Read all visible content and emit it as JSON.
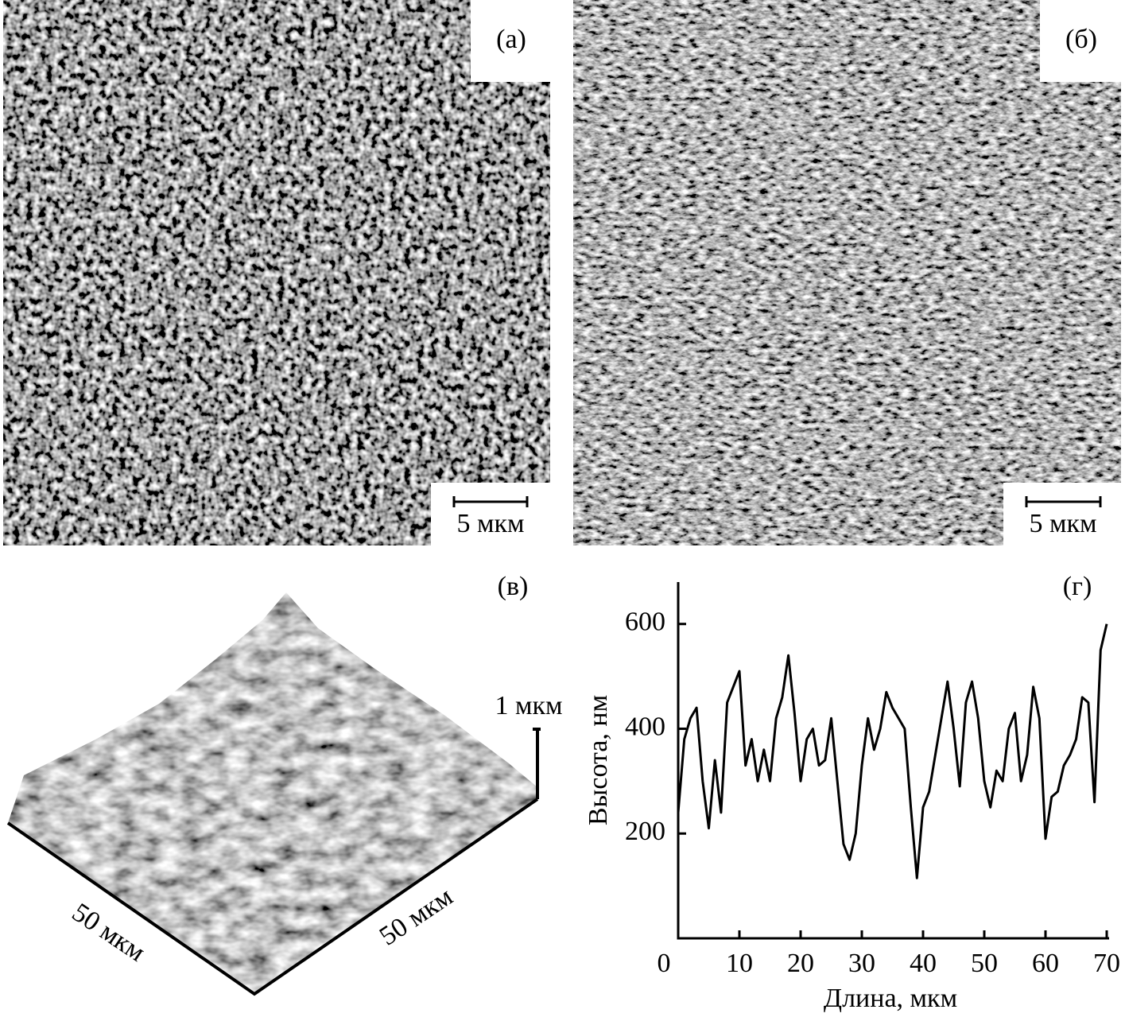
{
  "panels": [
    {
      "label": "(а)",
      "scale_bar": "5 мкм"
    },
    {
      "label": "(б)",
      "scale_bar": "5 мкм"
    },
    {
      "label": "(в)",
      "height_scale": "1 мкм",
      "x_axis": "50 мкм",
      "y_axis": "50 мкм"
    }
  ],
  "chart_data": {
    "type": "line",
    "label": "(г)",
    "xlabel": "Длина, мкм",
    "ylabel": "Высота, нм",
    "color": "#000000",
    "x": [
      0,
      1,
      2,
      3,
      4,
      5,
      6,
      7,
      8,
      9,
      10,
      11,
      12,
      13,
      14,
      15,
      16,
      17,
      18,
      19,
      20,
      21,
      22,
      23,
      24,
      25,
      26,
      27,
      28,
      29,
      30,
      31,
      32,
      33,
      34,
      35,
      36,
      37,
      38,
      39,
      40,
      41,
      42,
      43,
      44,
      45,
      46,
      47,
      48,
      49,
      50,
      51,
      52,
      53,
      54,
      55,
      56,
      57,
      58,
      59,
      60,
      61,
      62,
      63,
      64,
      65,
      66,
      67,
      68,
      69,
      70
    ],
    "values": [
      240,
      380,
      420,
      440,
      300,
      210,
      340,
      240,
      450,
      480,
      510,
      330,
      380,
      300,
      360,
      300,
      420,
      460,
      540,
      430,
      300,
      380,
      400,
      330,
      340,
      420,
      300,
      180,
      150,
      200,
      330,
      420,
      360,
      400,
      470,
      440,
      420,
      400,
      250,
      115,
      250,
      280,
      350,
      420,
      490,
      400,
      290,
      450,
      490,
      420,
      300,
      250,
      320,
      300,
      400,
      430,
      300,
      350,
      480,
      420,
      190,
      270,
      280,
      330,
      350,
      380,
      460,
      450,
      260,
      550,
      600
    ],
    "xlim": [
      0,
      70
    ],
    "ylim": [
      0,
      680
    ],
    "xticks": [
      0,
      10,
      20,
      30,
      40,
      50,
      60,
      70
    ],
    "yticks": [
      200,
      400,
      600
    ]
  }
}
